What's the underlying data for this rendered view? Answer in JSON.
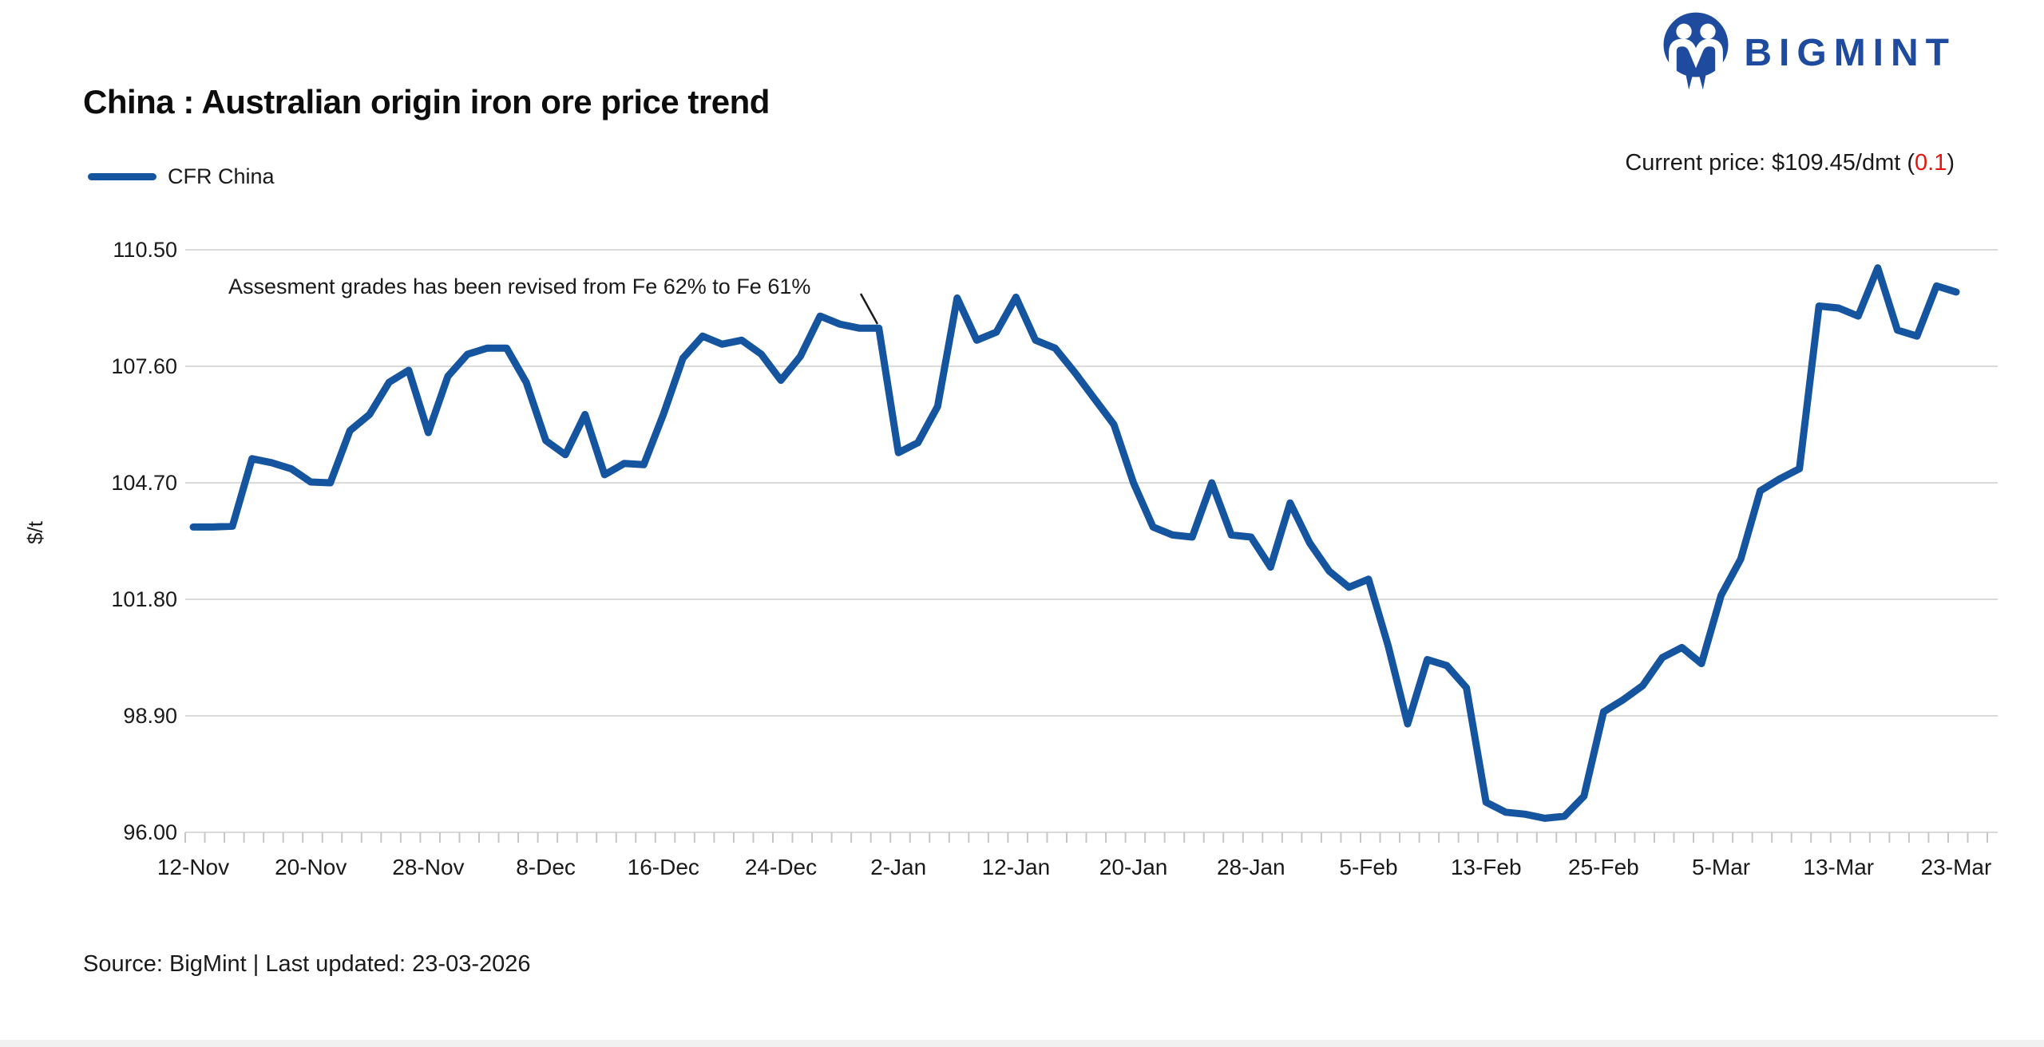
{
  "brand": {
    "wordmark": "BIGMINT",
    "icon": "bigmint-two-people-m-logo"
  },
  "header": {
    "title": "China : Australian origin iron ore price trend"
  },
  "legend": {
    "series_label": "CFR China"
  },
  "price_callout": {
    "prefix": "Current price: $109.45/dmt (",
    "change": "0.1",
    "suffix": ")"
  },
  "annotation": {
    "text": "Assesment grades has been revised from Fe 62% to Fe 61%"
  },
  "footer": {
    "source_text": "Source: BigMint | Last updated: 23-03-2026"
  },
  "colors": {
    "line": "#15549F",
    "brand_blue": "#1E4B9E",
    "negative_red": "#E8150D",
    "grid": "#DADADA",
    "tick": "#C6C6C6",
    "text": "#1A1A1A"
  },
  "chart_data": {
    "type": "line",
    "title": "China : Australian origin iron ore price trend",
    "series_name": "CFR China",
    "xlabel": "",
    "ylabel": "$/t",
    "ylim": [
      96.0,
      110.5
    ],
    "yticks": [
      "96.00",
      "98.90",
      "101.80",
      "104.70",
      "107.60",
      "110.50"
    ],
    "grid": "horizontal",
    "legend_position": "top-left",
    "x_tick_labels": [
      "12-Nov",
      "20-Nov",
      "28-Nov",
      "8-Dec",
      "16-Dec",
      "24-Dec",
      "2-Jan",
      "12-Jan",
      "20-Jan",
      "28-Jan",
      "5-Feb",
      "13-Feb",
      "25-Feb",
      "5-Mar",
      "13-Mar",
      "23-Mar"
    ],
    "points_per_label_interval": 6,
    "values": [
      103.6,
      103.6,
      103.62,
      105.3,
      105.2,
      105.05,
      104.72,
      104.7,
      106.0,
      106.4,
      107.2,
      107.5,
      105.95,
      107.35,
      107.9,
      108.05,
      108.05,
      107.2,
      105.75,
      105.4,
      106.4,
      104.9,
      105.18,
      105.15,
      106.4,
      107.8,
      108.35,
      108.15,
      108.25,
      107.9,
      107.25,
      107.85,
      108.85,
      108.65,
      108.55,
      108.55,
      105.45,
      105.7,
      106.6,
      109.3,
      108.25,
      108.45,
      109.32,
      108.25,
      108.05,
      107.45,
      106.8,
      106.15,
      104.7,
      103.6,
      103.4,
      103.35,
      104.7,
      103.4,
      103.35,
      102.6,
      104.2,
      103.2,
      102.5,
      102.1,
      102.3,
      100.65,
      98.7,
      100.3,
      100.15,
      99.6,
      96.75,
      96.5,
      96.45,
      96.35,
      96.4,
      96.9,
      99.0,
      99.3,
      99.65,
      100.35,
      100.6,
      100.2,
      101.9,
      102.8,
      104.5,
      104.8,
      105.05,
      109.1,
      109.05,
      108.85,
      110.05,
      108.5,
      108.35,
      109.6,
      109.45
    ],
    "annotation": {
      "text": "Assesment grades has been revised from Fe 62% to Fe 61%",
      "points_to": "2-Jan price drop after grade revision"
    }
  }
}
